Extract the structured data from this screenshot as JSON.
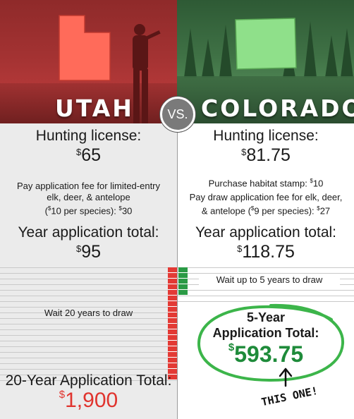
{
  "banner": {
    "left_title": "UTAH",
    "right_title": "COLORADO",
    "vs": "VS."
  },
  "utah": {
    "license_label": "Hunting license:",
    "license_amount": "65",
    "app_fee_line1": "Pay application fee for limited-entry",
    "app_fee_line2": "elk, deer, & antelope",
    "app_fee_line3_pre": "(",
    "app_fee_line3_sup1": "$",
    "app_fee_line3_mid": "10 per species): ",
    "app_fee_line3_sup2": "$",
    "app_fee_line3_val": "30",
    "year_total_label": "Year application total:",
    "year_total_amount": "95",
    "wait_text": "Wait 20 years to draw",
    "total_label": "20-Year Application Total:",
    "total_amount": "1,900"
  },
  "colorado": {
    "license_label": "Hunting license:",
    "license_amount": "81.75",
    "habitat_label": "Purchase habitat stamp: ",
    "habitat_amount": "10",
    "draw_fee_line1": "Pay draw application fee for elk, deer,",
    "draw_fee_line2_pre": "& antelope (",
    "draw_fee_line2_mid": "9 per species): ",
    "draw_fee_line2_val": "27",
    "year_total_label": "Year application total:",
    "year_total_amount": "118.75",
    "wait_text": "Wait up to 5 years to draw",
    "total_label_line1": "5-Year",
    "total_label_line2": "Application Total:",
    "total_amount": "593.75",
    "callout": "THIS ONE!"
  },
  "currency_symbol": "$",
  "colors": {
    "utah_red": "#e0342e",
    "colorado_green": "#1e8b3a",
    "bar_red": "#e33a35",
    "bar_green": "#2a9a45"
  },
  "years_to_draw": {
    "utah": 20,
    "colorado": 5
  }
}
